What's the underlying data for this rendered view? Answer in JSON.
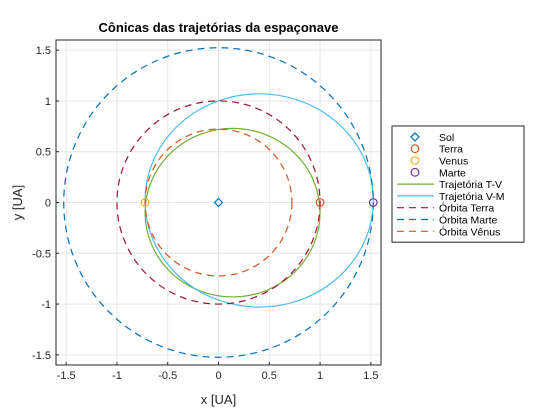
{
  "chart_data": {
    "type": "line",
    "title": "Cônicas das trajetórias da espaçonave",
    "xlabel": "x [UA]",
    "ylabel": "y [UA]",
    "xlim": [
      -1.6,
      1.6
    ],
    "ylim": [
      -1.6,
      1.6
    ],
    "xticks": [
      -1.5,
      -1,
      -0.5,
      0,
      0.5,
      1,
      1.5
    ],
    "xtick_labels": [
      "-1.5",
      "-1",
      "-0.5",
      "0",
      "0.5",
      "1",
      "1.5"
    ],
    "yticks": [
      -1.5,
      -1,
      -0.5,
      0,
      0.5,
      1,
      1.5
    ],
    "ytick_labels": [
      "-1.5",
      "-1",
      "-0.5",
      "0",
      "0.5",
      "1",
      "1.5"
    ],
    "grid": true,
    "legend_location": "right outside",
    "series": [
      {
        "name": "Sol",
        "kind": "marker",
        "marker": "diamond",
        "color": "#0072BD",
        "x": [
          0
        ],
        "y": [
          0
        ]
      },
      {
        "name": "Terra",
        "kind": "marker",
        "marker": "circle",
        "color": "#D95319",
        "x": [
          1.0
        ],
        "y": [
          0
        ]
      },
      {
        "name": "Venus",
        "kind": "marker",
        "marker": "circle",
        "color": "#EDB120",
        "x": [
          -0.723
        ],
        "y": [
          0
        ]
      },
      {
        "name": "Marte",
        "kind": "marker",
        "marker": "circle",
        "color": "#7E2F8E",
        "x": [
          1.524
        ],
        "y": [
          0
        ]
      },
      {
        "name": "Trajetória T-V",
        "kind": "ellipse",
        "style": "solid",
        "color": "#77AC30",
        "center": [
          0.1385,
          -0.1
        ],
        "semi_axes": [
          0.8615,
          0.83
        ]
      },
      {
        "name": "Trajetória V-M",
        "kind": "ellipse",
        "style": "solid",
        "color": "#4DBEEE",
        "center": [
          0.4005,
          0.02
        ],
        "semi_axes": [
          1.1235,
          1.05
        ]
      },
      {
        "name": "Órbita Terra",
        "kind": "circle",
        "style": "dashed",
        "color": "#A2142F",
        "center": [
          0,
          0
        ],
        "radius": 1.0
      },
      {
        "name": "Órbita Marte",
        "kind": "circle",
        "style": "dashed",
        "color": "#0072BD",
        "center": [
          0,
          0
        ],
        "radius": 1.524
      },
      {
        "name": "Órbita Vênus",
        "kind": "circle",
        "style": "dashed",
        "color": "#D95319",
        "center": [
          0,
          0
        ],
        "radius": 0.723
      }
    ]
  }
}
